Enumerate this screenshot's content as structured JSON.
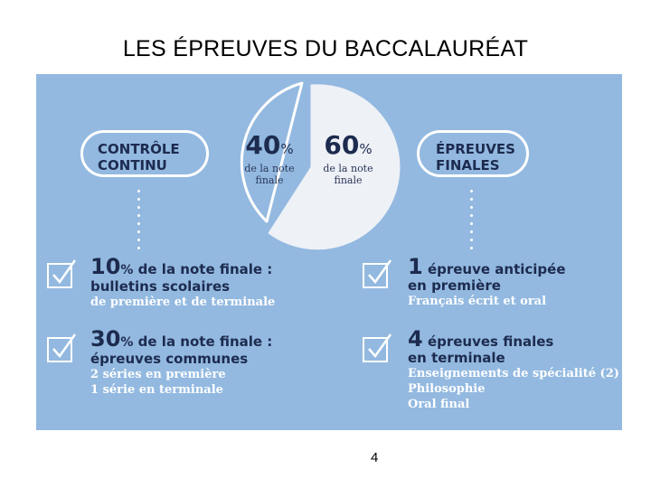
{
  "title": "LES ÉPREUVES DU BACCALAURÉAT",
  "page_number": "4",
  "colors": {
    "panel": "#93b9e0",
    "navy": "#1d2b4f",
    "white": "#ffffff"
  },
  "pie": {
    "left": {
      "value": "40",
      "unit": "%",
      "caption_l1": "de la note",
      "caption_l2": "finale"
    },
    "right": {
      "value": "60",
      "unit": "%",
      "caption_l1": "de la note",
      "caption_l2": "finale"
    }
  },
  "left_label": {
    "line1": "CONTRÔLE",
    "line2": "CONTINU"
  },
  "right_label": {
    "line1": "ÉPREUVES",
    "line2": "FINALES"
  },
  "left_items": [
    {
      "number": "10",
      "unit": "%",
      "heading": "de la note finale :",
      "line2": "bulletins scolaires",
      "details": [
        "de première et de terminale"
      ]
    },
    {
      "number": "30",
      "unit": "%",
      "heading": "de la note finale :",
      "line2": "épreuves communes",
      "details": [
        "2 séries en première",
        "1 série en terminale"
      ]
    }
  ],
  "right_items": [
    {
      "number": "1",
      "heading": "épreuve anticipée",
      "line2": "en première",
      "details": [
        "Français écrit et oral"
      ]
    },
    {
      "number": "4",
      "heading": "épreuves finales",
      "line2": "en terminale",
      "details": [
        "Enseignements de spécialité (2)",
        "Philosophie",
        "Oral final"
      ]
    }
  ]
}
